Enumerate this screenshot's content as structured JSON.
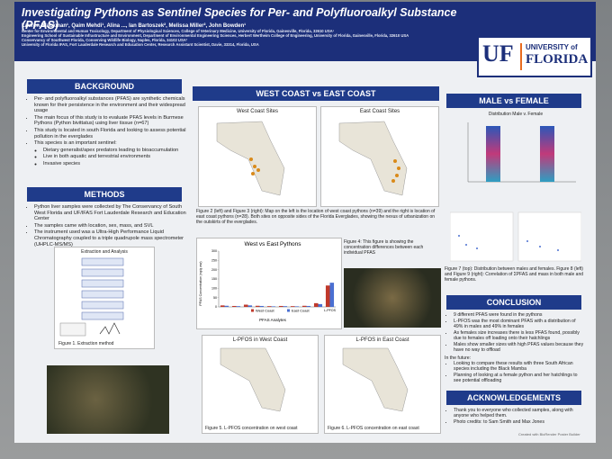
{
  "header": {
    "title": "Investigating Pythons as Sentinel Species for Per- and Polyfluoroalkyl Substance (PFAS)",
    "authors": "Lauren Blackman¹, Qaim Mehdi¹, Alina ..., Ian Bartoszek², Melissa Miller², John Bowden¹",
    "affiliations": [
      "Center for Environmental and Human Toxicology, Department of Physiological Sciences, College of Veterinary Medicine, University of Florida, Gainesville, Florida, 32610 USA¹",
      "Engineering School of Sustainable Infrastructure and Environment, Department of Environmental Engineering Sciences, Herbert Wertheim College of Engineering, University of Florida, Gainesville, Florida, 32610 USA",
      "Conservancy of Southwest Florida, Conserving Wildlife Biology, Naples, Florida, 34102 USA²",
      "University of Florida IFAS, Fort Lauderdale Research and Education Center, Research Assistant Scientist, Davie, 33314, Florida, USA"
    ]
  },
  "logo": {
    "mark": "UF",
    "name_top": "UNIVERSITY of",
    "name_bottom": "FLORIDA"
  },
  "background": {
    "heading": "BACKGROUND",
    "items": [
      "Per- and polyfluoroalkyl substances (PFAS) are synthetic chemicals known for their persistence in the environment and their widespread usage",
      "The main focus of this study is to evaluate PFAS levels in Burmese Pythons (Python bivittatus) using liver tissue (n=67)",
      "This study is located in south Florida and looking to assess potential pollution in the everglades",
      "This species is an important sentinel:"
    ],
    "subitems": [
      "Dietary generalist/apex predators leading to bioaccumulation",
      "Live in both aquatic and terrestrial environments",
      "Invasive species"
    ]
  },
  "methods": {
    "heading": "METHODS",
    "items": [
      "Python liver samples were collected by The Conservancy of South West Florida and UF/IFAS Fort Lauderdale Research and Education Center",
      "The samples came with location, sex, mass, and SVL",
      "The instrument used was a Ultra-High Performance Liquid Chromatography coupled to a triple quadrupole mass spectrometer (UHPLC-MS/MS)"
    ],
    "figure_title": "Extraction and Analysis",
    "figure_caption": "Figure 1. Extraction method"
  },
  "comparison": {
    "heading": "WEST COAST vs EAST COAST",
    "map_west": "West Coast Sites",
    "map_east": "East Coast Sites",
    "caption": "Figure 2 (left) and Figure 3 (right): Map on the left is the location of west coast pythons (n=39) and the right is location of east coast pythons (n=28). Both sites on opposite sides of the Florida Everglades, showing the nexus of urbanization on the outskirts of the everglades.",
    "figure4_caption": "Figure 4: This figure is showing the concentration differences between each individual PFAS",
    "map5_title": "L-PFOS in West Coast",
    "figure5_caption": "Figure 5. L-PFOS concentration on west coast",
    "map6_title": "L-PFOS in East Coast",
    "figure6_caption": "Figure 6. L-PFOS concentration on east coast"
  },
  "chart_data": {
    "type": "bar",
    "title": "West vs East Pythons",
    "x_label": "PFAS Analytes",
    "y_label": "PFAS Concentration (ng/g ww)",
    "categories": [
      null,
      null,
      null,
      null,
      null,
      null,
      null,
      null,
      null,
      "L-PFOS"
    ],
    "series": [
      {
        "name": "West Coast",
        "color": "#c0392b",
        "values": [
          8,
          5,
          12,
          6,
          4,
          5,
          4,
          6,
          20,
          115
        ]
      },
      {
        "name": "East Coast",
        "color": "#4a6fd1",
        "values": [
          6,
          4,
          8,
          5,
          3,
          4,
          3,
          5,
          15,
          130
        ]
      }
    ],
    "ylim": [
      0,
      300
    ],
    "yticks": [
      0,
      50,
      100,
      150,
      200,
      250,
      300
    ],
    "grid": false
  },
  "sex": {
    "heading": "MALE vs FEMALE",
    "chart_title": "Distribution Male v. Female",
    "caption": "Figure 7 (top): Distribution between males and females. Figure 8 (left) and Figure 9 (right): Correlation of ΣPFAS and mass in both male and female pythons."
  },
  "conclusion": {
    "heading": "CONCLUSION",
    "items": [
      "9 different PFAS were found in the pythons",
      "L-PFOS was the most dominant PFAS with a distribution of 49% in males and 49% in females",
      "As females size increases there is less PFAS found, possibly due to females off loading onto their hatchlings",
      "Males show smaller sizes with high PFAS values because they have no way to offload"
    ],
    "future_heading": "In the future:",
    "future_items": [
      "Looking to compare these results with three South African species including the Black Mamba",
      "Planning of looking at a female python and her hatchlings to see potential offloading"
    ]
  },
  "acknowledgements": {
    "heading": "ACKNOWLEDGEMENTS",
    "items": [
      "Thank you to everyone who collected samples, along with anyone who helped them.",
      "Photo credits: to Sam Smith and Max Jones"
    ],
    "footer": "Created with BioRender Poster Builder"
  }
}
